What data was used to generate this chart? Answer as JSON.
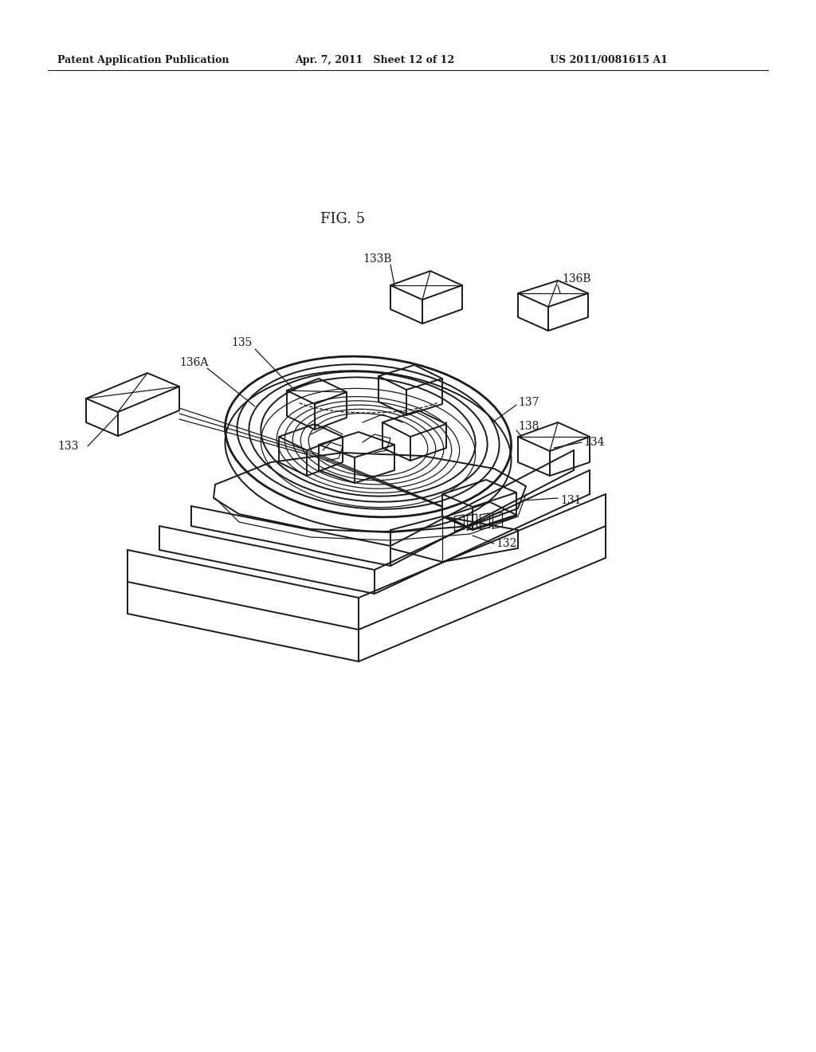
{
  "header_left": "Patent Application Publication",
  "header_center": "Apr. 7, 2011   Sheet 12 of 12",
  "header_right": "US 2011/0081615 A1",
  "figure_label": "FIG. 5",
  "background_color": "#ffffff",
  "line_color": "#1a1a1a",
  "lw_main": 1.4,
  "lw_thin": 0.9,
  "lw_thick": 2.0,
  "label_fontsize": 10,
  "header_fontsize": 9,
  "fig_label_fontsize": 13
}
